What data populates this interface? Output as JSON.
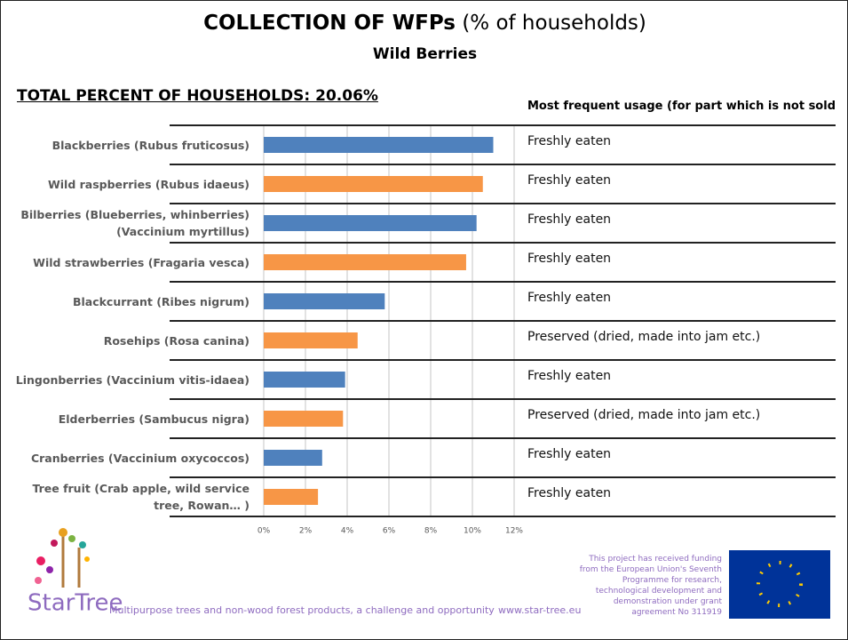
{
  "chart_data": {
    "type": "bar",
    "orientation": "horizontal",
    "title": "COLLECTION OF WFPs",
    "title_unit": "(% of households)",
    "subtitle": "Wild Berries",
    "total_label": "TOTAL PERCENT OF HOUSEHOLDS: 20.06%",
    "usage_header": "Most frequent usage (for part which is not sold",
    "categories": [
      "Blackberries (Rubus fruticosus)",
      "Wild raspberries (Rubus idaeus)",
      "Bilberries (Blueberries, whinberries) (Vaccinium myrtillus)",
      "Wild strawberries (Fragaria vesca)",
      "Blackcurrant (Ribes nigrum)",
      "Rosehips (Rosa canina)",
      "Lingonberries (Vaccinium vitis-idaea)",
      "Elderberries (Sambucus nigra)",
      "Cranberries (Vaccinium oxycoccos)",
      "Tree fruit (Crab apple, wild service tree, Rowan… )"
    ],
    "values": [
      11.0,
      10.5,
      10.2,
      9.7,
      5.8,
      4.5,
      3.9,
      3.8,
      2.8,
      2.6
    ],
    "colors": [
      "#4f81bd",
      "#f79646",
      "#4f81bd",
      "#f79646",
      "#4f81bd",
      "#f79646",
      "#4f81bd",
      "#f79646",
      "#4f81bd",
      "#f79646"
    ],
    "usage": [
      "Freshly eaten",
      "Freshly eaten",
      "Freshly eaten",
      "Freshly eaten",
      "Freshly eaten",
      "Preserved (dried, made into jam etc.)",
      "Freshly eaten",
      "Preserved (dried, made into jam etc.)",
      "Freshly eaten",
      "Freshly eaten"
    ],
    "xlim": [
      0,
      12
    ],
    "xticks": [
      {
        "value": 0,
        "label": "0%"
      },
      {
        "value": 2,
        "label": "2%"
      },
      {
        "value": 4,
        "label": "4%"
      },
      {
        "value": 6,
        "label": "6%"
      },
      {
        "value": 8,
        "label": "8%"
      },
      {
        "value": 10,
        "label": "10%"
      },
      {
        "value": 12,
        "label": "12%"
      }
    ],
    "grid": true
  },
  "footer": {
    "logo": "StarTree",
    "tagline": "Multipurpose trees and non-wood forest products, a challenge and opportunity",
    "url": "www.star-tree.eu",
    "funding": "This project has received funding from the European Union's Seventh Programme for research, technological development and demonstration under grant agreement No 311919"
  }
}
